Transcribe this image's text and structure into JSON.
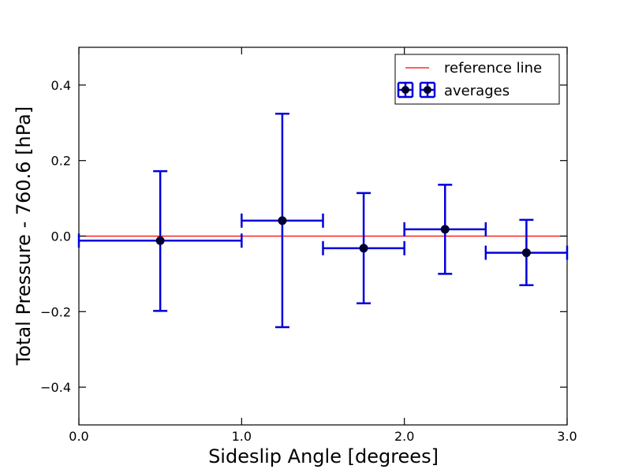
{
  "chart_data": {
    "type": "scatter",
    "xlabel": "Sideslip Angle [degrees]",
    "ylabel": "Total Pressure - 760.6 [hPa]",
    "xlim": [
      0.0,
      3.0
    ],
    "ylim": [
      -0.5,
      0.5
    ],
    "x_ticks": [
      0.0,
      1.0,
      2.0,
      3.0
    ],
    "x_tick_labels": [
      "0.0",
      "1.0",
      "2.0",
      "3.0"
    ],
    "y_ticks": [
      0.4,
      0.2,
      0.0,
      -0.2,
      -0.4
    ],
    "y_tick_labels": [
      "0.4",
      "0.2",
      "0.0",
      "−0.2",
      "−0.4"
    ],
    "grid": false,
    "legend_position": "top-right",
    "legend": {
      "reference_label": "reference line",
      "averages_label": "averages"
    },
    "reference_line": {
      "y": 0.0,
      "color": "#ff0000"
    },
    "series": [
      {
        "name": "averages",
        "color": "#0000dd",
        "marker_color": "#000033",
        "points": [
          {
            "x": 0.5,
            "y": -0.012,
            "xerr": 0.5,
            "y_low": -0.198,
            "y_high": 0.172
          },
          {
            "x": 1.25,
            "y": 0.041,
            "xerr": 0.25,
            "y_low": -0.241,
            "y_high": 0.324
          },
          {
            "x": 1.75,
            "y": -0.032,
            "xerr": 0.25,
            "y_low": -0.178,
            "y_high": 0.114
          },
          {
            "x": 2.25,
            "y": 0.018,
            "xerr": 0.25,
            "y_low": -0.1,
            "y_high": 0.136
          },
          {
            "x": 2.75,
            "y": -0.044,
            "xerr": 0.25,
            "y_low": -0.13,
            "y_high": 0.043
          }
        ]
      }
    ]
  }
}
